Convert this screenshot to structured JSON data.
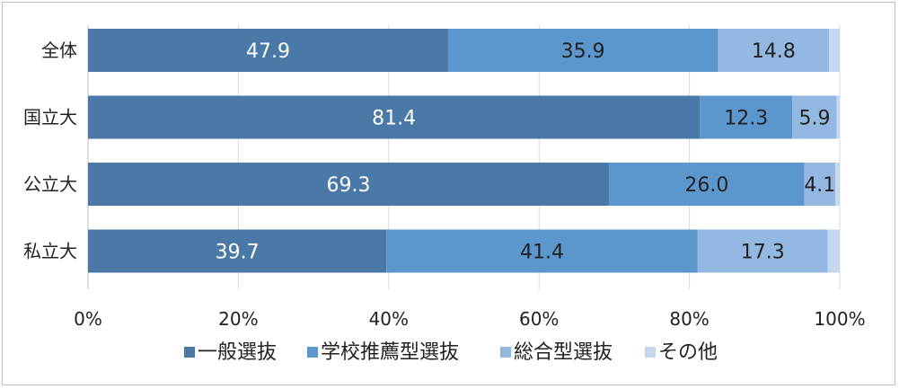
{
  "chart_data": {
    "type": "bar",
    "orientation": "horizontal",
    "stacked": true,
    "categories": [
      "全体",
      "国立大",
      "公立大",
      "私立大"
    ],
    "series": [
      {
        "name": "一般選抜",
        "values": [
          47.9,
          81.4,
          69.3,
          39.7
        ],
        "color": "#4a79a8",
        "label_color": "#ffffff"
      },
      {
        "name": "学校推薦型選抜",
        "values": [
          35.9,
          12.3,
          26.0,
          41.4
        ],
        "color": "#5b96cd",
        "label_color": "#222222"
      },
      {
        "name": "総合型選抜",
        "values": [
          14.8,
          5.9,
          4.1,
          17.3
        ],
        "color": "#93b9e2",
        "label_color": "#222222"
      },
      {
        "name": "その他",
        "values": [
          1.4,
          0.4,
          0.6,
          1.6
        ],
        "color": "#c5d8ef",
        "label_color": "#222222"
      }
    ],
    "value_labels": [
      [
        "47.9",
        "35.9",
        "14.8",
        ""
      ],
      [
        "81.4",
        "12.3",
        "5.9",
        ""
      ],
      [
        "69.3",
        "26.0",
        "4.1",
        ""
      ],
      [
        "39.7",
        "41.4",
        "17.3",
        ""
      ]
    ],
    "xlim": [
      0,
      100
    ],
    "x_ticks": [
      "0%",
      "20%",
      "40%",
      "60%",
      "80%",
      "100%"
    ],
    "grid": true,
    "legend_position": "bottom",
    "title": "",
    "xlabel": "",
    "ylabel": ""
  }
}
